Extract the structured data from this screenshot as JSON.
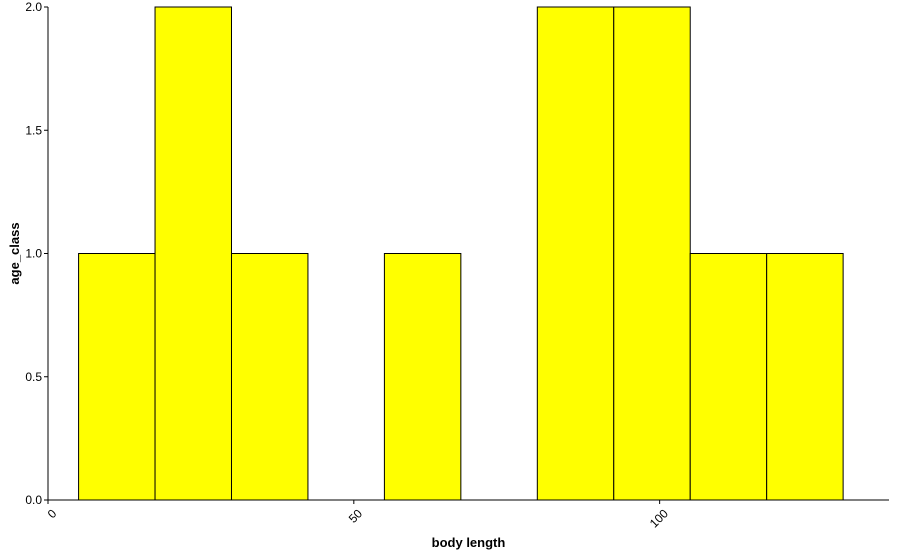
{
  "chart_data": {
    "type": "bar",
    "title": "",
    "xlabel": "body length",
    "ylabel": "age_class",
    "bin_width": 12.5,
    "bins": [
      {
        "x_start": 5,
        "x_end": 17.5,
        "value": 1
      },
      {
        "x_start": 17.5,
        "x_end": 30,
        "value": 2
      },
      {
        "x_start": 30,
        "x_end": 42.5,
        "value": 1
      },
      {
        "x_start": 42.5,
        "x_end": 55,
        "value": 0
      },
      {
        "x_start": 55,
        "x_end": 67.5,
        "value": 1
      },
      {
        "x_start": 67.5,
        "x_end": 80,
        "value": 0
      },
      {
        "x_start": 80,
        "x_end": 92.5,
        "value": 2
      },
      {
        "x_start": 92.5,
        "x_end": 105,
        "value": 2
      },
      {
        "x_start": 105,
        "x_end": 117.5,
        "value": 1
      },
      {
        "x_start": 117.5,
        "x_end": 130,
        "value": 1
      }
    ],
    "xlim": [
      0,
      137.5
    ],
    "ylim": [
      0,
      2
    ],
    "x_ticks": [
      0,
      50,
      100
    ],
    "x_tick_labels": [
      "0",
      "50",
      "100"
    ],
    "y_ticks": [
      0,
      0.5,
      1,
      1.5,
      2
    ],
    "y_tick_labels": [
      "0.0",
      "0.5",
      "1.0",
      "1.5",
      "2.0"
    ],
    "bar_fill": "#FFFF00",
    "bar_outline": "#000000",
    "grid": false
  }
}
